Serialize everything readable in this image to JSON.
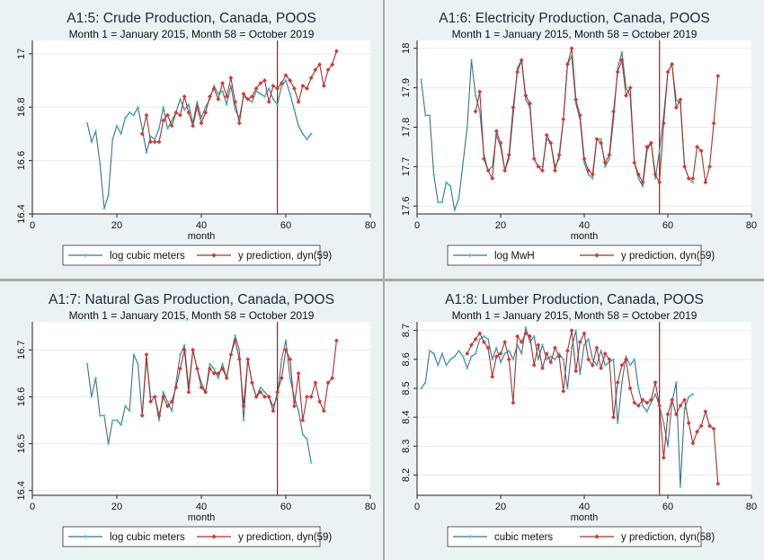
{
  "colors": {
    "actual": "#3d6f8e",
    "actual_marker": "#22d3d3",
    "prediction": "#a8322c",
    "prediction_marker": "#e0322b",
    "vline": "#a81818"
  },
  "chart_data": [
    {
      "type": "line",
      "title": "A1:5: Crude Production, Canada, POOS",
      "subtitle": "Month 1 = January 2015, Month 58 = October 2019",
      "xlabel": "month",
      "ylabel": "",
      "xlim": [
        0,
        80
      ],
      "xticks": [
        0,
        20,
        40,
        60,
        80
      ],
      "ylim": [
        16.4,
        17.05
      ],
      "yticks": [
        16.4,
        16.6,
        16.8,
        17
      ],
      "ytick_labels": [
        "16.4",
        "16.6",
        "16.8",
        "17"
      ],
      "vline": 58,
      "legend_position": "bottom",
      "series": [
        {
          "name": "log cubic meters",
          "role": "actual",
          "x": [
            13,
            14,
            15,
            16,
            17,
            18,
            19,
            20,
            21,
            22,
            23,
            24,
            25,
            26,
            27,
            28,
            29,
            30,
            31,
            32,
            33,
            34,
            35,
            36,
            37,
            38,
            39,
            40,
            41,
            42,
            43,
            44,
            45,
            46,
            47,
            48,
            49,
            50,
            51,
            52,
            53,
            54,
            55,
            56,
            57,
            58,
            59,
            60,
            61,
            62,
            63,
            64,
            65,
            66
          ],
          "y": [
            16.74,
            16.67,
            16.71,
            16.59,
            16.42,
            16.47,
            16.68,
            16.73,
            16.7,
            16.76,
            16.78,
            16.77,
            16.8,
            16.72,
            16.63,
            16.69,
            16.68,
            16.72,
            16.8,
            16.72,
            16.75,
            16.78,
            16.83,
            16.79,
            16.81,
            16.74,
            16.82,
            16.76,
            16.8,
            16.83,
            16.88,
            16.85,
            16.86,
            16.81,
            16.88,
            16.79,
            16.76,
            16.84,
            16.83,
            16.82,
            16.86,
            16.85,
            16.84,
            16.87,
            16.83,
            16.81,
            16.88,
            16.9,
            16.85,
            16.79,
            16.73,
            16.7,
            16.68,
            16.7
          ]
        },
        {
          "name": "y prediction, dyn(59)",
          "role": "prediction",
          "x": [
            26,
            27,
            28,
            29,
            30,
            31,
            32,
            33,
            34,
            35,
            36,
            37,
            38,
            39,
            40,
            41,
            42,
            43,
            44,
            45,
            46,
            47,
            48,
            49,
            50,
            51,
            52,
            53,
            54,
            55,
            56,
            57,
            58,
            59,
            60,
            61,
            62,
            63,
            64,
            65,
            66,
            67,
            68,
            69,
            70,
            71,
            72
          ],
          "y": [
            16.7,
            16.77,
            16.67,
            16.67,
            16.67,
            16.75,
            16.77,
            16.73,
            16.78,
            16.77,
            16.84,
            16.78,
            16.73,
            16.8,
            16.74,
            16.78,
            16.84,
            16.87,
            16.83,
            16.89,
            16.84,
            16.91,
            16.82,
            16.74,
            16.85,
            16.83,
            16.84,
            16.87,
            16.89,
            16.9,
            16.82,
            16.88,
            16.87,
            16.89,
            16.92,
            16.9,
            16.87,
            16.82,
            16.88,
            16.87,
            16.91,
            16.94,
            16.96,
            16.88,
            16.94,
            16.96,
            17.01
          ]
        }
      ]
    },
    {
      "type": "line",
      "title": "A1:6: Electricity Production, Canada, POOS",
      "subtitle": "Month 1 = January 2015, Month 58 = October 2019",
      "xlabel": "month",
      "ylabel": "",
      "xlim": [
        0,
        80
      ],
      "xticks": [
        0,
        20,
        40,
        60,
        80
      ],
      "ylim": [
        17.58,
        18.02
      ],
      "yticks": [
        17.6,
        17.7,
        17.8,
        17.9,
        18
      ],
      "ytick_labels": [
        "17.6",
        "17.7",
        "17.8",
        "17.9",
        "18"
      ],
      "vline": 58,
      "legend_position": "bottom",
      "series": [
        {
          "name": "log MwH",
          "role": "actual",
          "x": [
            1,
            2,
            3,
            4,
            5,
            6,
            7,
            8,
            9,
            10,
            11,
            12,
            13,
            14,
            15,
            16,
            17,
            18,
            19,
            20,
            21,
            22,
            23,
            24,
            25,
            26,
            27,
            28,
            29,
            30,
            31,
            32,
            33,
            34,
            35,
            36,
            37,
            38,
            39,
            40,
            41,
            42,
            43,
            44,
            45,
            46,
            47,
            48,
            49,
            50,
            51,
            52,
            53,
            54,
            55,
            56,
            57,
            58,
            59,
            60,
            61,
            62,
            63,
            64,
            65,
            66
          ],
          "y": [
            17.92,
            17.83,
            17.83,
            17.68,
            17.61,
            17.61,
            17.66,
            17.65,
            17.59,
            17.62,
            17.71,
            17.8,
            17.97,
            17.88,
            17.84,
            17.73,
            17.69,
            17.7,
            17.78,
            17.75,
            17.69,
            17.72,
            17.83,
            17.95,
            17.97,
            17.87,
            17.85,
            17.72,
            17.7,
            17.7,
            17.77,
            17.76,
            17.7,
            17.72,
            17.82,
            17.96,
            17.98,
            17.86,
            17.82,
            17.71,
            17.68,
            17.67,
            17.77,
            17.77,
            17.7,
            17.72,
            17.82,
            17.95,
            17.99,
            17.9,
            17.88,
            17.71,
            17.67,
            17.65,
            17.74,
            17.76,
            17.67,
            17.74,
            17.83,
            17.94,
            17.96,
            17.87,
            17.86,
            17.7,
            17.67,
            17.66
          ]
        },
        {
          "name": "y prediction, dyn(59)",
          "role": "prediction",
          "x": [
            14,
            15,
            16,
            17,
            18,
            19,
            20,
            21,
            22,
            23,
            24,
            25,
            26,
            27,
            28,
            29,
            30,
            31,
            32,
            33,
            34,
            35,
            36,
            37,
            38,
            39,
            40,
            41,
            42,
            43,
            44,
            45,
            46,
            47,
            48,
            49,
            50,
            51,
            52,
            53,
            54,
            55,
            56,
            57,
            58,
            59,
            60,
            61,
            62,
            63,
            64,
            65,
            66,
            67,
            68,
            69,
            70,
            71,
            72
          ],
          "y": [
            17.84,
            17.89,
            17.72,
            17.69,
            17.67,
            17.79,
            17.76,
            17.69,
            17.73,
            17.85,
            17.94,
            17.97,
            17.88,
            17.86,
            17.72,
            17.7,
            17.69,
            17.78,
            17.76,
            17.69,
            17.73,
            17.82,
            17.96,
            18.0,
            17.87,
            17.83,
            17.72,
            17.69,
            17.68,
            17.77,
            17.76,
            17.71,
            17.73,
            17.84,
            17.94,
            17.97,
            17.88,
            17.9,
            17.71,
            17.68,
            17.66,
            17.75,
            17.76,
            17.68,
            17.66,
            17.81,
            17.94,
            17.96,
            17.85,
            17.87,
            17.7,
            17.67,
            17.67,
            17.75,
            17.74,
            17.66,
            17.7,
            17.81,
            17.93
          ]
        }
      ]
    },
    {
      "type": "line",
      "title": "A1:7: Natural Gas Production, Canada, POOS",
      "subtitle": "Month 1 = January 2015, Month 58 = October 2019",
      "xlabel": "month",
      "ylabel": "",
      "xlim": [
        0,
        80
      ],
      "xticks": [
        0,
        20,
        40,
        60,
        80
      ],
      "ylim": [
        16.39,
        16.76
      ],
      "yticks": [
        16.4,
        16.5,
        16.6,
        16.7
      ],
      "ytick_labels": [
        "16.4",
        "16.5",
        "16.6",
        "16.7"
      ],
      "vline": 58,
      "legend_position": "bottom",
      "series": [
        {
          "name": "log cubic meters",
          "role": "actual",
          "x": [
            13,
            14,
            15,
            16,
            17,
            18,
            19,
            20,
            21,
            22,
            23,
            24,
            25,
            26,
            27,
            28,
            29,
            30,
            31,
            32,
            33,
            34,
            35,
            36,
            37,
            38,
            39,
            40,
            41,
            42,
            43,
            44,
            45,
            46,
            47,
            48,
            49,
            50,
            51,
            52,
            53,
            54,
            55,
            56,
            57,
            58,
            59,
            60,
            61,
            62,
            63,
            64,
            65,
            66
          ],
          "y": [
            16.67,
            16.6,
            16.64,
            16.56,
            16.56,
            16.5,
            16.55,
            16.55,
            16.54,
            16.58,
            16.57,
            16.69,
            16.67,
            16.56,
            16.68,
            16.6,
            16.6,
            16.55,
            16.61,
            16.59,
            16.57,
            16.63,
            16.69,
            16.71,
            16.62,
            16.7,
            16.66,
            16.63,
            16.61,
            16.67,
            16.66,
            16.64,
            16.67,
            16.64,
            16.69,
            16.73,
            16.7,
            16.55,
            16.68,
            16.63,
            16.6,
            16.62,
            16.61,
            16.6,
            16.58,
            16.6,
            16.68,
            16.72,
            16.64,
            16.6,
            16.57,
            16.52,
            16.51,
            16.46
          ]
        },
        {
          "name": "y prediction, dyn(59)",
          "role": "prediction",
          "x": [
            26,
            27,
            28,
            29,
            30,
            31,
            32,
            33,
            34,
            35,
            36,
            37,
            38,
            39,
            40,
            41,
            42,
            43,
            44,
            45,
            46,
            47,
            48,
            49,
            50,
            51,
            52,
            53,
            54,
            55,
            56,
            57,
            58,
            59,
            60,
            61,
            62,
            63,
            64,
            65,
            66,
            67,
            68,
            69,
            70,
            71,
            72
          ],
          "y": [
            16.56,
            16.69,
            16.59,
            16.6,
            16.56,
            16.6,
            16.58,
            16.59,
            16.62,
            16.66,
            16.7,
            16.61,
            16.7,
            16.66,
            16.62,
            16.61,
            16.66,
            16.65,
            16.65,
            16.66,
            16.64,
            16.69,
            16.72,
            16.68,
            16.58,
            16.68,
            16.63,
            16.6,
            16.61,
            16.6,
            16.6,
            16.57,
            16.61,
            16.64,
            16.7,
            16.68,
            16.58,
            16.65,
            16.55,
            16.6,
            16.6,
            16.63,
            16.59,
            16.57,
            16.63,
            16.64,
            16.72
          ]
        }
      ]
    },
    {
      "type": "line",
      "title": "A1:8: Lumber Production, Canada, POOS",
      "subtitle": "Month 1 = January 2015, Month 58 = October 2019",
      "xlabel": "month",
      "ylabel": "",
      "xlim": [
        0,
        80
      ],
      "xticks": [
        0,
        20,
        40,
        60,
        80
      ],
      "ylim": [
        8.13,
        8.73
      ],
      "yticks": [
        8.2,
        8.3,
        8.4,
        8.5,
        8.6,
        8.7
      ],
      "ytick_labels": [
        "8.2",
        "8.3",
        "8.4",
        "8.5",
        "8.6",
        "8.7"
      ],
      "vline": 58,
      "legend_position": "bottom",
      "series": [
        {
          "name": "cubic meters",
          "role": "actual",
          "x": [
            1,
            2,
            3,
            4,
            5,
            6,
            7,
            8,
            9,
            10,
            11,
            12,
            13,
            14,
            15,
            16,
            17,
            18,
            19,
            20,
            21,
            22,
            23,
            24,
            25,
            26,
            27,
            28,
            29,
            30,
            31,
            32,
            33,
            34,
            35,
            36,
            37,
            38,
            39,
            40,
            41,
            42,
            43,
            44,
            45,
            46,
            47,
            48,
            49,
            50,
            51,
            52,
            53,
            54,
            55,
            56,
            57,
            58,
            59,
            60,
            61,
            62,
            63,
            64,
            65,
            66
          ],
          "y": [
            8.5,
            8.52,
            8.63,
            8.62,
            8.58,
            8.62,
            8.58,
            8.6,
            8.61,
            8.63,
            8.61,
            8.57,
            8.61,
            8.62,
            8.67,
            8.68,
            8.67,
            8.6,
            8.64,
            8.59,
            8.62,
            8.63,
            8.6,
            8.65,
            8.62,
            8.71,
            8.66,
            8.68,
            8.6,
            8.65,
            8.6,
            8.61,
            8.6,
            8.62,
            8.6,
            8.5,
            8.64,
            8.7,
            8.55,
            8.65,
            8.67,
            8.6,
            8.58,
            8.63,
            8.58,
            8.59,
            8.6,
            8.38,
            8.52,
            8.61,
            8.58,
            8.6,
            8.5,
            8.44,
            8.42,
            8.45,
            8.48,
            8.44,
            8.38,
            8.3,
            8.45,
            8.52,
            8.16,
            8.43,
            8.47,
            8.48
          ]
        },
        {
          "name": "y prediction, dyn(58)",
          "role": "prediction",
          "x": [
            12,
            13,
            14,
            15,
            16,
            17,
            18,
            19,
            20,
            21,
            22,
            23,
            24,
            25,
            26,
            27,
            28,
            29,
            30,
            31,
            32,
            33,
            34,
            35,
            36,
            37,
            38,
            39,
            40,
            41,
            42,
            43,
            44,
            45,
            46,
            47,
            48,
            49,
            50,
            51,
            52,
            53,
            54,
            55,
            56,
            57,
            58,
            59,
            60,
            61,
            62,
            63,
            64,
            65,
            66,
            67,
            68,
            69,
            70,
            71,
            72
          ],
          "y": [
            8.62,
            8.65,
            8.67,
            8.69,
            8.66,
            8.64,
            8.54,
            8.61,
            8.62,
            8.66,
            8.6,
            8.45,
            8.68,
            8.66,
            8.69,
            8.68,
            8.58,
            8.65,
            8.57,
            8.62,
            8.59,
            8.64,
            8.61,
            8.49,
            8.63,
            8.7,
            8.56,
            8.66,
            8.69,
            8.6,
            8.58,
            8.64,
            8.57,
            8.62,
            8.6,
            8.4,
            8.52,
            8.58,
            8.6,
            8.5,
            8.45,
            8.44,
            8.46,
            8.45,
            8.46,
            8.52,
            8.44,
            8.26,
            8.41,
            8.46,
            8.41,
            8.44,
            8.46,
            8.38,
            8.31,
            8.35,
            8.37,
            8.42,
            8.37,
            8.36,
            8.17
          ]
        }
      ]
    }
  ]
}
